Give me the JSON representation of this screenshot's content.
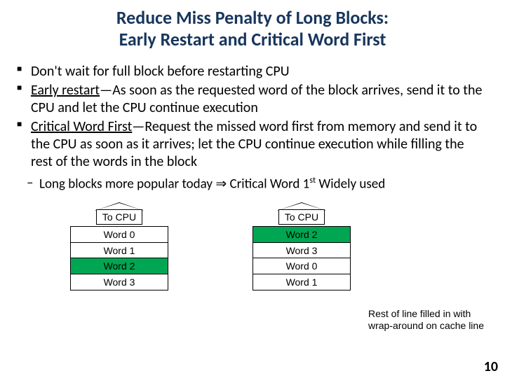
{
  "title_line1": "Reduce Miss Penalty of Long Blocks:",
  "title_line2": "Early Restart and Critical Word First",
  "bullet1": "Don't wait for full block before restarting CPU",
  "bullet2_term": "Early restart",
  "bullet2_rest": "—As soon as the requested word of the block arrives, send it to the CPU and let the CPU continue execution",
  "bullet3_term": "Critical Word First",
  "bullet3_rest": "—Request the missed word first from memory and send it to the CPU as soon as it arrives; let the CPU continue execution while filling the rest of the words in the block",
  "sub_a": "Long blocks more popular today ",
  "sub_b": " Critical Word 1",
  "sub_sup": "st",
  "sub_c": " Widely used",
  "arrow_symbol": "⇒",
  "tocpu": "To CPU",
  "left_words": [
    "Word 0",
    "Word 1",
    "Word 2",
    "Word 3"
  ],
  "left_highlight_index": 2,
  "right_words": [
    "Word 2",
    "Word 3",
    "Word 0",
    "Word 1"
  ],
  "right_highlight_index": 0,
  "side_note": "Rest of line filled in with wrap-around on cache line",
  "page_number": "10",
  "colors": {
    "title": "#17365d",
    "highlight": "#00a651",
    "background": "#ffffff",
    "text": "#000000"
  }
}
